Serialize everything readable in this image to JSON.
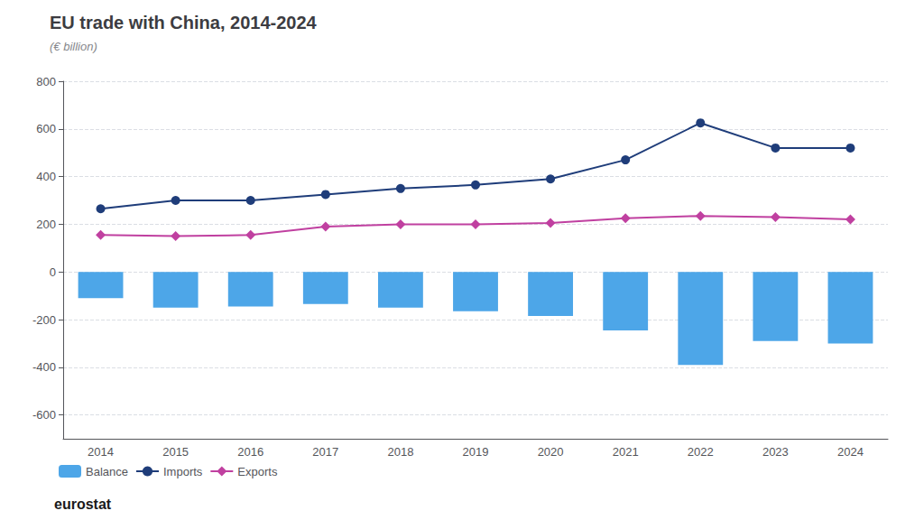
{
  "chart_data": {
    "type": "bar",
    "title": "EU trade with China, 2014-2024",
    "subtitle": "(€ billion)",
    "categories": [
      "2014",
      "2015",
      "2016",
      "2017",
      "2018",
      "2019",
      "2020",
      "2021",
      "2022",
      "2023",
      "2024"
    ],
    "series": [
      {
        "name": "Balance",
        "type": "bar",
        "color": "#4da6e8",
        "values": [
          -110,
          -150,
          -145,
          -135,
          -150,
          -165,
          -185,
          -245,
          -390,
          -290,
          -300
        ]
      },
      {
        "name": "Imports",
        "type": "line",
        "color": "#1f3d7a",
        "marker": "circle",
        "values": [
          265,
          300,
          300,
          325,
          350,
          365,
          390,
          470,
          625,
          520,
          520
        ]
      },
      {
        "name": "Exports",
        "type": "line",
        "color": "#c040a0",
        "marker": "diamond",
        "values": [
          155,
          150,
          155,
          190,
          200,
          200,
          205,
          225,
          235,
          230,
          220
        ]
      }
    ],
    "ylim": [
      -700,
      800
    ],
    "yticks": [
      -600,
      -400,
      -200,
      0,
      200,
      400,
      600,
      800
    ],
    "grid": true,
    "legend": "lower left",
    "annotations": [
      "eurostat"
    ]
  }
}
